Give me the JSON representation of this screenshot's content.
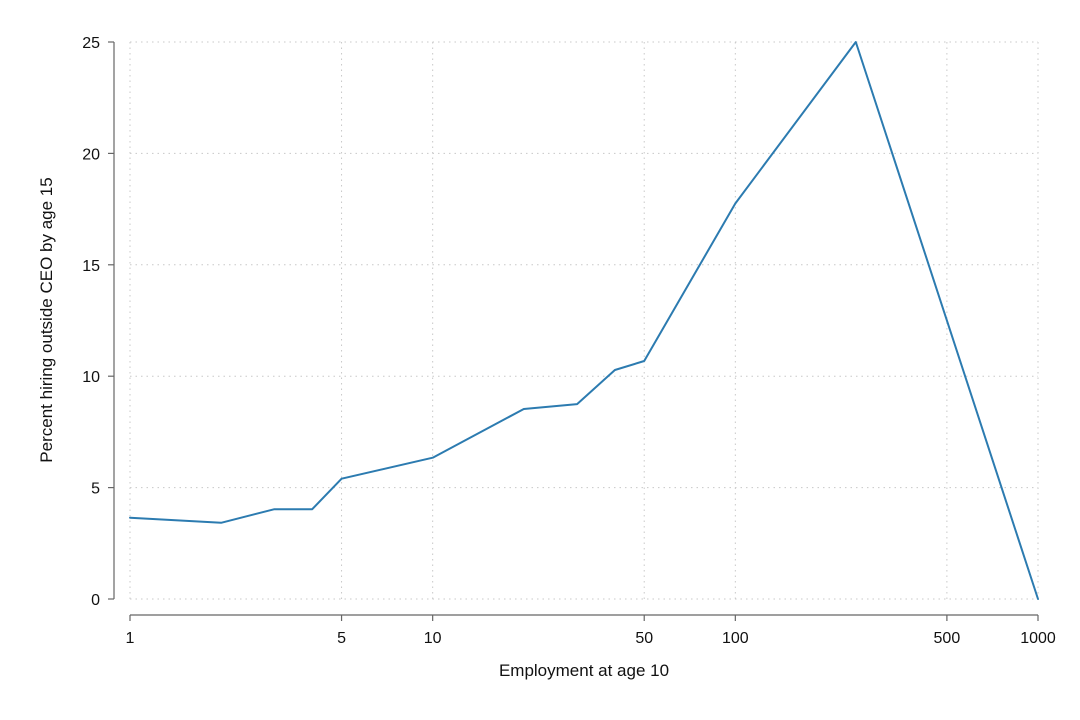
{
  "chart_data": {
    "type": "line",
    "title": "",
    "xlabel": "Employment at age 10",
    "ylabel": "Percent hiring outside CEO by age 15",
    "x_scale": "log",
    "xlim": [
      1,
      1000
    ],
    "ylim": [
      0,
      25
    ],
    "x_ticks": [
      1,
      5,
      10,
      50,
      100,
      500,
      1000
    ],
    "y_ticks": [
      0,
      5,
      10,
      15,
      20,
      25
    ],
    "grid": true,
    "line_color": "#2c7bb0",
    "series": [
      {
        "x": [
          1,
          2,
          3,
          4,
          5,
          10,
          20,
          30,
          40,
          50,
          100,
          250,
          1000
        ],
        "y": [
          3.65,
          3.42,
          4.03,
          4.03,
          5.4,
          6.34,
          8.53,
          8.75,
          10.28,
          10.68,
          17.75,
          25.0,
          0.0
        ]
      }
    ]
  }
}
